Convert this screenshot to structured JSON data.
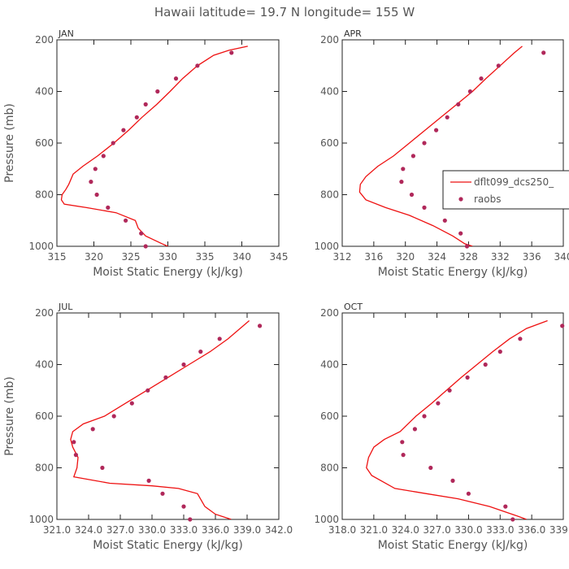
{
  "title": "Hawaii  latitude= 19.7 N longitude= 155 W",
  "legend": {
    "model_label": "dflt099_dcs250_",
    "obs_label": "raobs"
  },
  "colors": {
    "model_line": "#ee1111",
    "obs_dots": "#b0285a",
    "axis": "#222222",
    "text": "#555555"
  },
  "chart_data": [
    {
      "type": "line",
      "panel_label": "JAN",
      "xlabel": "Moist Static Energy (kJ/kg)",
      "ylabel": "Pressure (mb)",
      "xlim": [
        315,
        345
      ],
      "ylim": [
        1000,
        200
      ],
      "xticks": [
        315,
        320,
        325,
        330,
        335,
        340,
        345
      ],
      "xtick_labels": [
        "315",
        "320",
        "325",
        "330",
        "335",
        "340",
        "345"
      ],
      "yticks": [
        200,
        400,
        600,
        800,
        1000
      ],
      "ytick_labels": [
        "200",
        "400",
        "600",
        "800",
        "1000"
      ],
      "series": [
        {
          "name": "dflt099_dcs250_",
          "style": "line",
          "x": [
            330.0,
            329.2,
            327.0,
            326.0,
            325.6,
            323.0,
            319.0,
            316.0,
            315.6,
            315.7,
            316.2,
            316.6,
            317.2,
            318.5,
            320.5,
            322.7,
            324.7,
            326.5,
            328.5,
            330.3,
            332.0,
            334.0,
            336.2,
            338.3,
            340.8
          ],
          "y": [
            1000,
            990,
            960,
            930,
            900,
            870,
            850,
            837,
            820,
            800,
            780,
            760,
            720,
            690,
            650,
            600,
            550,
            500,
            450,
            400,
            350,
            300,
            260,
            240,
            225
          ]
        },
        {
          "name": "raobs",
          "style": "dots",
          "x": [
            327.0,
            326.4,
            324.3,
            321.9,
            320.4,
            319.6,
            320.2,
            321.3,
            322.6,
            324.0,
            325.8,
            327.0,
            328.6,
            331.1,
            334.0,
            338.6
          ],
          "y": [
            1000,
            950,
            900,
            850,
            800,
            750,
            700,
            650,
            600,
            550,
            500,
            450,
            400,
            350,
            300,
            250
          ]
        }
      ]
    },
    {
      "type": "line",
      "panel_label": "APR",
      "xlabel": "Moist Static Energy (kJ/kg)",
      "ylabel": "Pressure (mb)",
      "xlim": [
        312,
        340
      ],
      "ylim": [
        1000,
        200
      ],
      "xticks": [
        312,
        316,
        320,
        324,
        328,
        332,
        336,
        340
      ],
      "xtick_labels": [
        "312",
        "316",
        "320",
        "324",
        "328",
        "332",
        "336",
        "340"
      ],
      "yticks": [
        200,
        400,
        600,
        800,
        1000
      ],
      "ytick_labels": [
        "200",
        "400",
        "600",
        "800",
        "1000"
      ],
      "series": [
        {
          "name": "dflt099_dcs250_",
          "style": "line",
          "x": [
            328.5,
            327.5,
            326.0,
            323.5,
            320.5,
            317.5,
            315.0,
            314.2,
            314.3,
            315.0,
            316.5,
            318.5,
            320.5,
            322.5,
            324.5,
            326.5,
            328.5,
            330.2,
            332.0,
            333.8,
            334.8
          ],
          "y": [
            1000,
            990,
            960,
            920,
            880,
            850,
            820,
            790,
            760,
            730,
            690,
            650,
            600,
            550,
            500,
            450,
            400,
            350,
            300,
            250,
            225
          ]
        },
        {
          "name": "raobs",
          "style": "dots",
          "x": [
            327.8,
            327.0,
            325.0,
            322.4,
            320.8,
            319.5,
            319.7,
            321.0,
            322.4,
            323.9,
            325.3,
            326.7,
            328.2,
            329.6,
            331.8,
            337.5
          ],
          "y": [
            1000,
            950,
            900,
            850,
            800,
            750,
            700,
            650,
            600,
            550,
            500,
            450,
            400,
            350,
            300,
            250
          ]
        }
      ]
    },
    {
      "type": "line",
      "panel_label": "JUL",
      "xlabel": "Moist Static Energy (kJ/kg)",
      "ylabel": "Pressure (mb)",
      "xlim": [
        321.0,
        342.0
      ],
      "ylim": [
        1000,
        200
      ],
      "xticks": [
        321.0,
        324.0,
        327.0,
        330.0,
        333.0,
        336.0,
        339.0,
        342.0
      ],
      "xtick_labels": [
        "321.0",
        "324.0",
        "327.0",
        "330.0",
        "333.0",
        "336.0",
        "339.0",
        "342.0"
      ],
      "yticks": [
        200,
        400,
        600,
        800,
        1000
      ],
      "ytick_labels": [
        "200",
        "400",
        "600",
        "800",
        "1000"
      ],
      "series": [
        {
          "name": "dflt099_dcs250_",
          "style": "line",
          "x": [
            337.5,
            336.0,
            335.0,
            334.3,
            332.5,
            330.0,
            326.0,
            322.6,
            322.9,
            323.0,
            322.5,
            322.3,
            322.5,
            323.5,
            325.5,
            327.5,
            329.5,
            331.5,
            333.5,
            335.5,
            337.2,
            339.2
          ],
          "y": [
            1000,
            980,
            950,
            900,
            880,
            870,
            860,
            835,
            800,
            760,
            720,
            690,
            660,
            630,
            600,
            550,
            500,
            450,
            400,
            350,
            300,
            230
          ]
        },
        {
          "name": "raobs",
          "style": "dots",
          "x": [
            333.6,
            333.0,
            331.0,
            329.7,
            325.3,
            322.8,
            322.6,
            324.4,
            326.4,
            328.1,
            329.6,
            331.3,
            333.0,
            334.6,
            336.4,
            340.2
          ],
          "y": [
            1000,
            950,
            900,
            850,
            800,
            750,
            700,
            650,
            600,
            550,
            500,
            450,
            400,
            350,
            300,
            250
          ]
        }
      ]
    },
    {
      "type": "line",
      "panel_label": "OCT",
      "xlabel": "Moist Static Energy (kJ/kg)",
      "ylabel": "Pressure (mb)",
      "xlim": [
        318.0,
        339.0
      ],
      "ylim": [
        1000,
        200
      ],
      "xticks": [
        318.0,
        321.0,
        324.0,
        327.0,
        330.0,
        333.0,
        336.0,
        339.0
      ],
      "xtick_labels": [
        "318.0",
        "321.0",
        "324.0",
        "327.0",
        "330.0",
        "333.0",
        "336.0",
        "339.0"
      ],
      "yticks": [
        200,
        400,
        600,
        800,
        1000
      ],
      "ytick_labels": [
        "200",
        "400",
        "600",
        "800",
        "1000"
      ],
      "series": [
        {
          "name": "dflt099_dcs250_",
          "style": "line",
          "x": [
            335.5,
            334.5,
            332.0,
            329.0,
            326.0,
            323.0,
            320.8,
            320.3,
            320.5,
            321.0,
            322.0,
            323.5,
            325.0,
            326.5,
            327.9,
            329.3,
            330.8,
            332.3,
            333.9,
            335.5,
            337.5
          ],
          "y": [
            1000,
            985,
            950,
            920,
            900,
            880,
            830,
            800,
            760,
            720,
            690,
            660,
            600,
            550,
            500,
            450,
            400,
            350,
            300,
            260,
            230
          ]
        },
        {
          "name": "raobs",
          "style": "dots",
          "x": [
            334.2,
            333.5,
            330.0,
            328.5,
            326.4,
            323.8,
            323.7,
            324.9,
            325.8,
            327.1,
            328.2,
            329.9,
            331.6,
            333.0,
            334.9,
            338.9
          ],
          "y": [
            1000,
            950,
            900,
            850,
            800,
            750,
            700,
            650,
            600,
            550,
            500,
            450,
            400,
            350,
            300,
            250
          ]
        }
      ]
    }
  ]
}
